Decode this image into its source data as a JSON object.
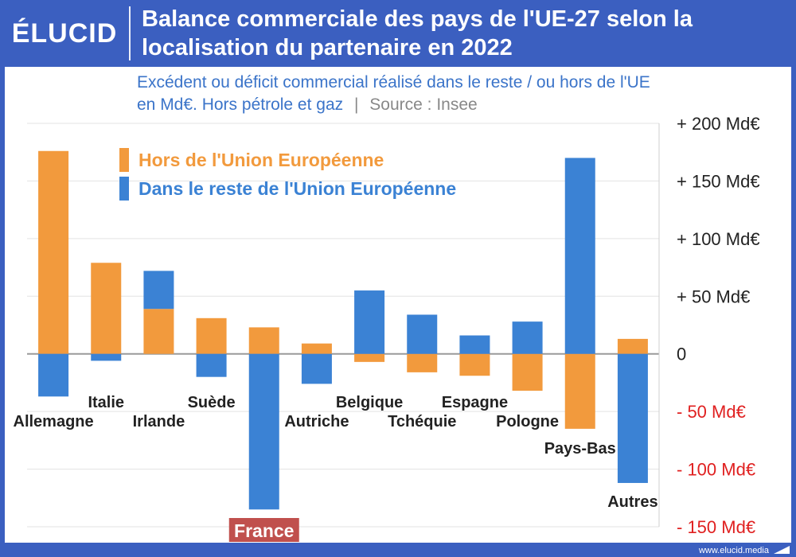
{
  "header": {
    "logo": "ÉLUCID",
    "title_line1": "Balance commerciale des pays de l'UE-27 selon la",
    "title_line2": "localisation du partenaire en 2022"
  },
  "subtitle": {
    "line1": "Excédent ou déficit commercial réalisé dans le reste / ou hors de l'UE",
    "line2_main": "en Md€. Hors pétrole et gaz",
    "line2_sep": "|",
    "line2_source": "Source : Insee"
  },
  "footer": {
    "url": "www.elucid.media"
  },
  "colors": {
    "orange": "#f29a3d",
    "blue": "#3b82d4",
    "negative": "#e02020",
    "highlight": "#c0504d"
  },
  "chart_data": {
    "type": "bar",
    "stacked": true,
    "categories": [
      "Allemagne",
      "Italie",
      "Irlande",
      "Suède",
      "France",
      "Autriche",
      "Belgique",
      "Tchéquie",
      "Espagne",
      "Pologne",
      "Pays-Bas",
      "Autres"
    ],
    "highlight_category": "France",
    "series": [
      {
        "name": "Hors de l'Union Européenne",
        "color": "#f29a3d",
        "values": [
          176,
          79,
          39,
          31,
          23,
          9,
          -7,
          -16,
          -19,
          -32,
          -65,
          13
        ]
      },
      {
        "name": "Dans le reste de l'Union Européenne",
        "color": "#3b82d4",
        "values": [
          -37,
          -6,
          33,
          -20,
          -135,
          -26,
          55,
          34,
          16,
          28,
          170,
          -112
        ]
      }
    ],
    "legend": {
      "item1_strong": "Hors",
      "item1_rest": " de l'Union Européenne",
      "item2_strong": "Dans le reste",
      "item2_rest": " de l'Union Européenne",
      "position": "top-left"
    },
    "ylim": [
      -150,
      200
    ],
    "y_ticks": [
      {
        "value": 200,
        "label": "+ 200 Md€"
      },
      {
        "value": 150,
        "label": "+ 150 Md€"
      },
      {
        "value": 100,
        "label": "+ 100 Md€"
      },
      {
        "value": 50,
        "label": "+ 50 Md€"
      },
      {
        "value": 0,
        "label": "0"
      },
      {
        "value": -50,
        "label": "- 50 Md€"
      },
      {
        "value": -100,
        "label": "- 100 Md€"
      },
      {
        "value": -150,
        "label": "- 150 Md€"
      }
    ],
    "y_axis_position": "right",
    "grid": true
  }
}
